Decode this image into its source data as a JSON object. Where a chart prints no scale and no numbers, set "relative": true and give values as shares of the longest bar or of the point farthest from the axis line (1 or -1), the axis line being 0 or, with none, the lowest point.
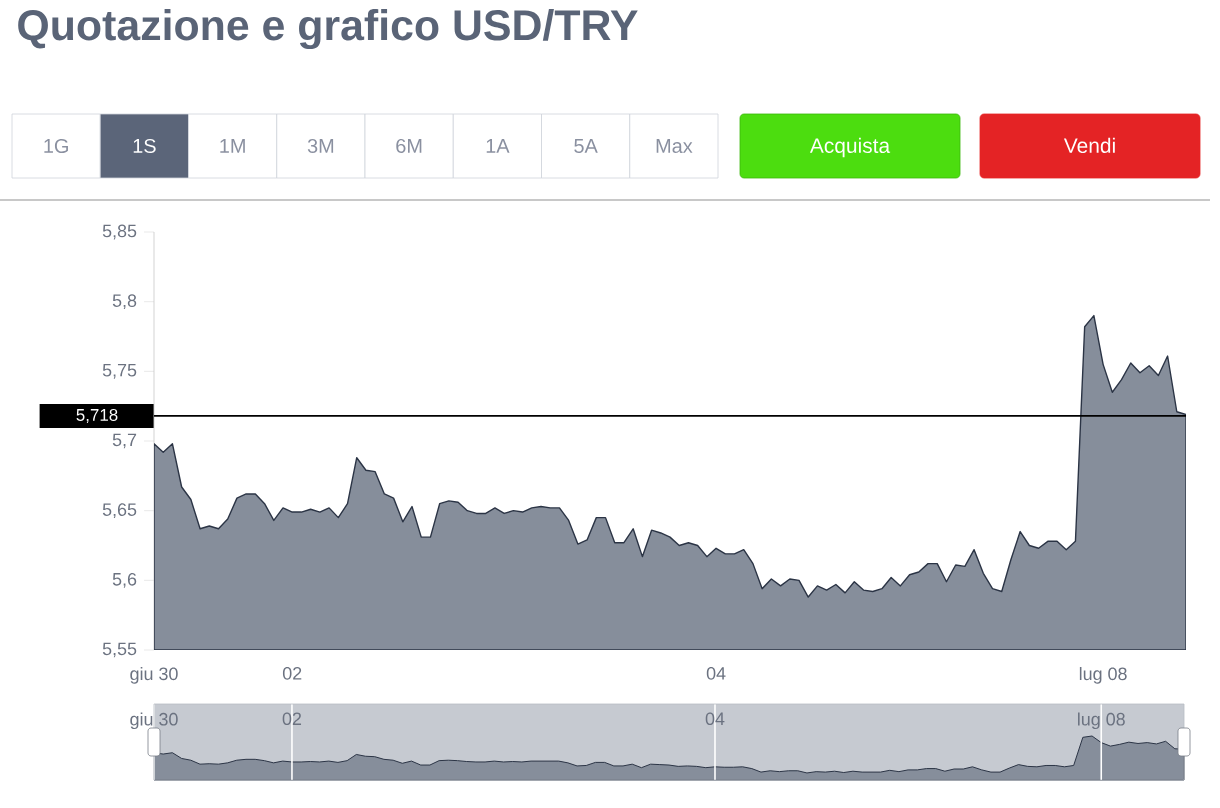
{
  "chart_data": [
    {
      "type": "other",
      "title": "Quotazione e grafico USD/TRY",
      "annotations": [
        "1G",
        "1S",
        "1M",
        "3M",
        "6M",
        "1A",
        "5A",
        "Max",
        "Acquista",
        "Vendi"
      ]
    },
    {
      "type": "area",
      "color": "#868e9b",
      "categories": [
        "giu 30",
        null,
        null,
        null,
        null,
        null,
        null,
        null,
        null,
        null,
        null,
        null,
        null,
        null,
        null,
        "02",
        null,
        null,
        null,
        null,
        null,
        null,
        null,
        null,
        null,
        null,
        null,
        null,
        null,
        null,
        null,
        null,
        null,
        null,
        null,
        null,
        null,
        null,
        null,
        null,
        null,
        null,
        null,
        null,
        null,
        null,
        null,
        null,
        null,
        null,
        null,
        null,
        null,
        null,
        null,
        null,
        null,
        null,
        null,
        null,
        null,
        "04",
        null,
        null,
        null,
        null,
        null,
        null,
        null,
        null,
        null,
        null,
        null,
        null,
        null,
        null,
        null,
        null,
        null,
        null,
        null,
        null,
        null,
        null,
        null,
        null,
        null,
        null,
        null,
        null,
        null,
        null,
        null,
        null,
        null,
        null,
        null,
        null,
        null,
        null,
        null,
        null,
        null,
        "lug 08",
        null,
        null,
        null,
        null,
        null,
        null,
        null,
        null,
        null
      ],
      "values": [
        5.698,
        5.692,
        5.698,
        5.667,
        5.658,
        5.637,
        5.639,
        5.637,
        5.644,
        5.659,
        5.662,
        5.662,
        5.655,
        5.643,
        5.652,
        5.649,
        5.649,
        5.651,
        5.649,
        5.652,
        5.645,
        5.655,
        5.688,
        5.679,
        5.678,
        5.662,
        5.659,
        5.642,
        5.653,
        5.631,
        5.631,
        5.655,
        5.657,
        5.656,
        5.65,
        5.648,
        5.648,
        5.652,
        5.648,
        5.65,
        5.649,
        5.652,
        5.653,
        5.652,
        5.652,
        5.643,
        5.626,
        5.629,
        5.645,
        5.645,
        5.627,
        5.627,
        5.637,
        5.617,
        5.636,
        5.634,
        5.631,
        5.625,
        5.627,
        5.625,
        5.617,
        5.623,
        5.619,
        5.619,
        5.622,
        5.612,
        5.594,
        5.601,
        5.596,
        5.601,
        5.6,
        5.588,
        5.596,
        5.593,
        5.597,
        5.591,
        5.599,
        5.593,
        5.592,
        5.594,
        5.602,
        5.596,
        5.604,
        5.606,
        5.612,
        5.612,
        5.599,
        5.611,
        5.61,
        5.622,
        5.605,
        5.594,
        5.592,
        5.615,
        5.635,
        5.625,
        5.623,
        5.628,
        5.628,
        5.622,
        5.628,
        5.782,
        5.79,
        5.755,
        5.735,
        5.744,
        5.756,
        5.749,
        5.754,
        5.747,
        5.761,
        5.721,
        5.719
      ],
      "ylim": [
        5.55,
        5.85
      ],
      "yticks": [
        {
          "value": 5.55,
          "label": "5,55"
        },
        {
          "value": 5.6,
          "label": "5,6"
        },
        {
          "value": 5.65,
          "label": "5,65"
        },
        {
          "value": 5.7,
          "label": "5,7"
        },
        {
          "value": 5.75,
          "label": "5,75"
        },
        {
          "value": 5.8,
          "label": "5,8"
        },
        {
          "value": 5.85,
          "label": "5,85"
        }
      ],
      "ref_lines": [
        {
          "axis": "y",
          "value": 5.718,
          "label": "5,718",
          "color": "#000000"
        }
      ],
      "grid": false
    },
    {
      "type": "area",
      "relative": true,
      "color": "#868e9b",
      "values": [
        0.62,
        0.59,
        0.62,
        0.49,
        0.45,
        0.36,
        0.37,
        0.36,
        0.39,
        0.45,
        0.47,
        0.47,
        0.44,
        0.39,
        0.43,
        0.41,
        0.41,
        0.42,
        0.41,
        0.43,
        0.4,
        0.44,
        0.58,
        0.54,
        0.53,
        0.47,
        0.45,
        0.38,
        0.43,
        0.34,
        0.34,
        0.44,
        0.45,
        0.44,
        0.42,
        0.41,
        0.41,
        0.43,
        0.41,
        0.42,
        0.41,
        0.43,
        0.43,
        0.43,
        0.43,
        0.39,
        0.32,
        0.33,
        0.4,
        0.4,
        0.32,
        0.32,
        0.36,
        0.28,
        0.36,
        0.35,
        0.34,
        0.31,
        0.32,
        0.31,
        0.28,
        0.3,
        0.29,
        0.29,
        0.3,
        0.26,
        0.18,
        0.21,
        0.19,
        0.21,
        0.21,
        0.16,
        0.19,
        0.18,
        0.2,
        0.17,
        0.2,
        0.18,
        0.18,
        0.18,
        0.22,
        0.19,
        0.23,
        0.23,
        0.26,
        0.26,
        0.2,
        0.25,
        0.25,
        0.3,
        0.23,
        0.18,
        0.18,
        0.27,
        0.35,
        0.31,
        0.3,
        0.33,
        0.33,
        0.3,
        0.33,
        0.97,
        1,
        0.85,
        0.77,
        0.81,
        0.86,
        0.83,
        0.85,
        0.82,
        0.88,
        0.71,
        0.7
      ],
      "categories": [
        "giu 30",
        null,
        null,
        null,
        null,
        null,
        null,
        null,
        null,
        null,
        null,
        null,
        null,
        null,
        null,
        "02",
        null,
        null,
        null,
        null,
        null,
        null,
        null,
        null,
        null,
        null,
        null,
        null,
        null,
        null,
        null,
        null,
        null,
        null,
        null,
        null,
        null,
        null,
        null,
        null,
        null,
        null,
        null,
        null,
        null,
        null,
        null,
        null,
        null,
        null,
        null,
        null,
        null,
        null,
        null,
        null,
        null,
        null,
        null,
        null,
        null,
        "04",
        null,
        null,
        null,
        null,
        null,
        null,
        null,
        null,
        null,
        null,
        null,
        null,
        null,
        null,
        null,
        null,
        null,
        null,
        null,
        null,
        null,
        null,
        null,
        null,
        null,
        null,
        null,
        null,
        null,
        null,
        null,
        null,
        null,
        null,
        null,
        null,
        null,
        null,
        null,
        null,
        null,
        "lug 08",
        null,
        null,
        null,
        null,
        null,
        null,
        null,
        null,
        null
      ]
    }
  ]
}
